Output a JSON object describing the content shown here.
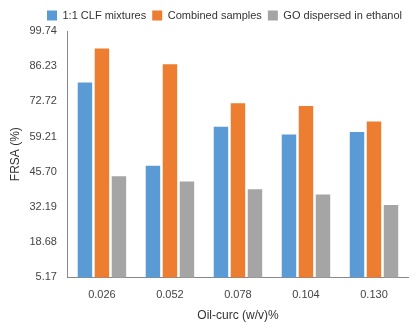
{
  "chart_data": {
    "type": "bar",
    "x_label": "Oil-curc (w/v)%",
    "y_label": "FRSA (%)",
    "categories": [
      "0.026",
      "0.052",
      "0.078",
      "0.104",
      "0.130"
    ],
    "series": [
      {
        "name": "1:1 CLF mixtures",
        "color": "#5b9bd5",
        "values": [
          80,
          48,
          63,
          60,
          61
        ]
      },
      {
        "name": "Combined samples",
        "color": "#ed7d31",
        "values": [
          93,
          87,
          72,
          71,
          65
        ]
      },
      {
        "name": "GO dispersed in ethanol",
        "color": "#a5a5a5",
        "values": [
          44,
          42,
          39,
          37,
          33
        ]
      }
    ],
    "ylim": [
      5.17,
      99.74
    ],
    "yticks": [
      5.17,
      18.68,
      32.19,
      {
        "value": 45.7,
        "label": "45.70"
      },
      59.21,
      72.72,
      86.23,
      99.74
    ],
    "grid": false,
    "legend": "upper right"
  }
}
